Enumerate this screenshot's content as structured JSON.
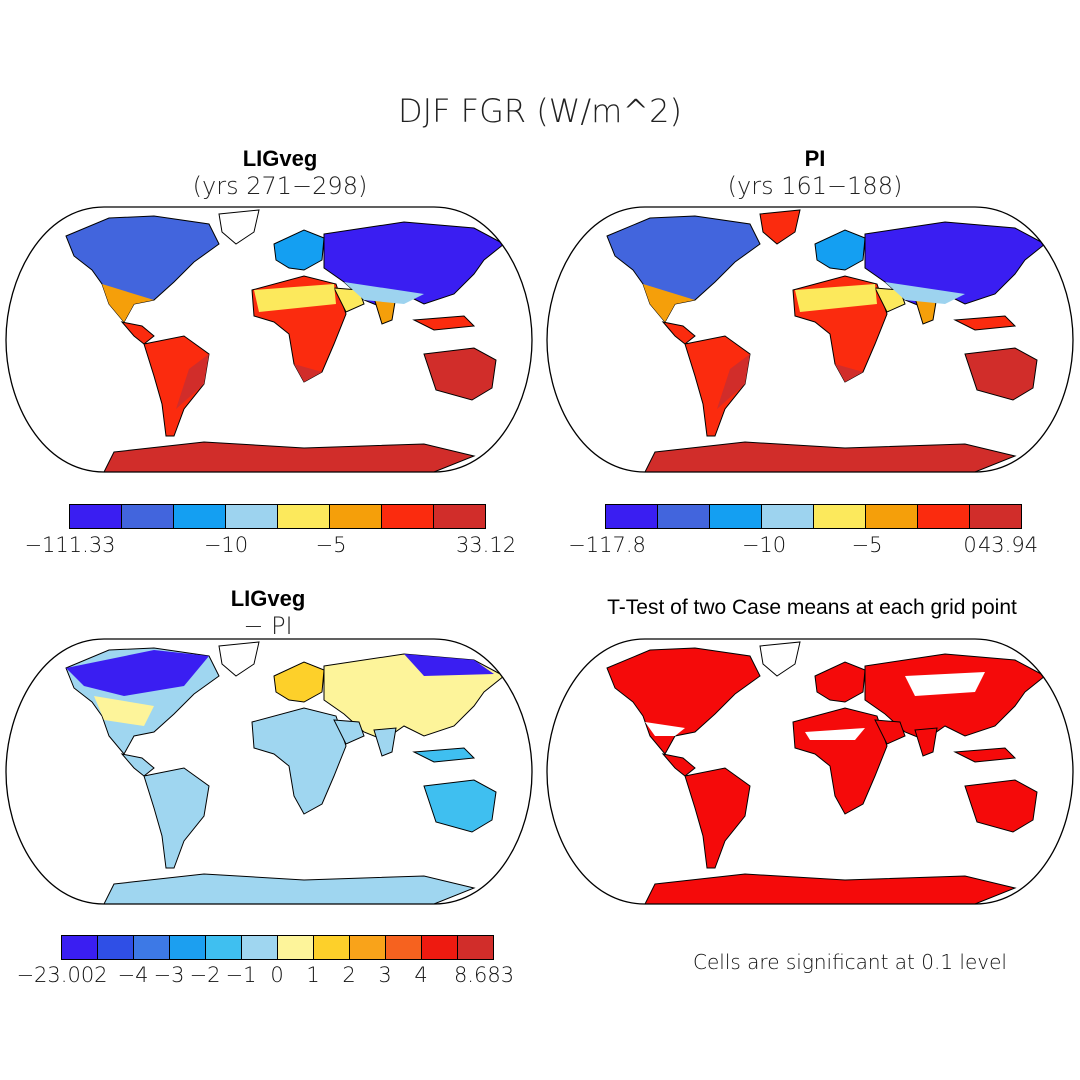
{
  "title": "DJF FGR (W/m^2)",
  "panels": [
    {
      "title": "LIGveg",
      "subtitle": "(yrs 271−298)",
      "colorbar": {
        "colors": [
          "#3a1ef2",
          "#4265dd",
          "#149ff2",
          "#9dd3ef",
          "#fce95c",
          "#f59f0a",
          "#fb2b0e",
          "#d12d2a"
        ],
        "ticks": [
          "−111.33",
          "−10",
          "−5",
          "33.12"
        ]
      }
    },
    {
      "title": "PI",
      "subtitle": "(yrs 161−188)",
      "colorbar": {
        "colors": [
          "#3a1ef2",
          "#4265dd",
          "#149ff2",
          "#9dd3ef",
          "#fce95c",
          "#f59f0a",
          "#fb2b0e",
          "#d12d2a"
        ],
        "ticks": [
          "−117.8",
          "−10",
          "−5",
          "0",
          "43.94"
        ]
      }
    },
    {
      "title": "LIGveg",
      "subtitle": "− PI",
      "colorbar": {
        "colors": [
          "#3a1ef2",
          "#2f4fe6",
          "#3d79e6",
          "#1c9ff0",
          "#3fbff0",
          "#9fd6f0",
          "#fdf49a",
          "#fdd02a",
          "#f9a31a",
          "#f6621f",
          "#ee1a10",
          "#d12d2a"
        ],
        "ticks": [
          "−23.002",
          "−4",
          "−3",
          "−2",
          "−1",
          "0",
          "1",
          "2",
          "3",
          "4",
          "8.683"
        ]
      }
    },
    {
      "title": "T-Test of two Case means at each grid point",
      "note": "Cells are significant at 0.1 level",
      "color": "#f50a0a"
    }
  ]
}
